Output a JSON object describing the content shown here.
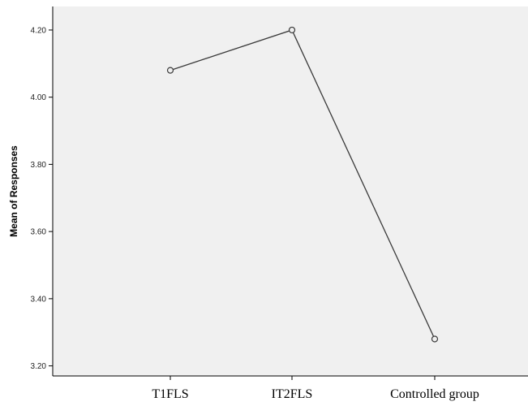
{
  "chart_data": {
    "type": "line",
    "title": "",
    "xlabel": "",
    "ylabel": "Mean of Responses",
    "categories": [
      "T1FLS",
      "IT2FLS",
      "Controlled group"
    ],
    "series": [
      {
        "values": [
          4.08,
          4.2,
          3.28
        ]
      }
    ],
    "ylim": [
      3.17,
      4.27
    ],
    "yticks": [
      3.2,
      3.4,
      3.6,
      3.8,
      4.0,
      4.2
    ],
    "ytick_labels": [
      "3.20",
      "3.40",
      "3.60",
      "3.80",
      "4.00",
      "4.20"
    ],
    "grid": false,
    "legend": "none",
    "colors": {
      "plot_background": "#f0f0f0",
      "line": "#3a3a3a",
      "marker_edge": "#3a3a3a",
      "axis": "#000000"
    }
  }
}
